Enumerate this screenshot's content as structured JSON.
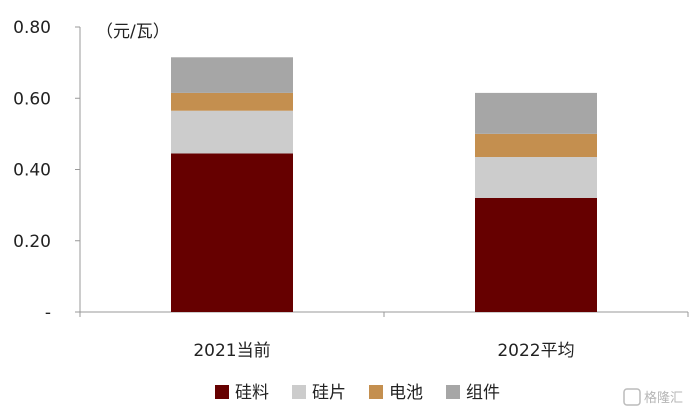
{
  "chart_data": {
    "type": "bar",
    "stacked": true,
    "unit": "（元/瓦）",
    "categories": [
      "2021当前",
      "2022平均"
    ],
    "series": [
      {
        "name": "硅料",
        "values": [
          0.445,
          0.32
        ],
        "color": "#660000"
      },
      {
        "name": "硅片",
        "values": [
          0.12,
          0.115
        ],
        "color": "#cccccc"
      },
      {
        "name": "电池",
        "values": [
          0.05,
          0.065
        ],
        "color": "#c48f4f"
      },
      {
        "name": "组件",
        "values": [
          0.1,
          0.115
        ],
        "color": "#a6a6a6"
      }
    ],
    "ylim": [
      0,
      0.8
    ],
    "yticks": [
      {
        "value": 0,
        "label": "-"
      },
      {
        "value": 0.2,
        "label": "0.20"
      },
      {
        "value": 0.4,
        "label": "0.40"
      },
      {
        "value": 0.6,
        "label": "0.60"
      },
      {
        "value": 0.8,
        "label": "0.80"
      }
    ],
    "grid": false,
    "legend": "bottom"
  },
  "watermark": {
    "text": "格隆汇"
  }
}
